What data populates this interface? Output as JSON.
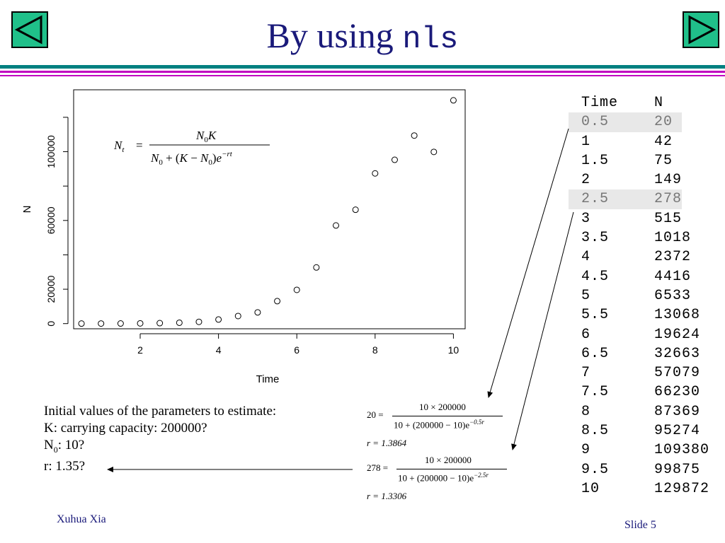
{
  "slide": {
    "title_prefix": "By using",
    "title_code": "nls",
    "author": "Xuhua Xia",
    "slide_number": "Slide 5",
    "colors": {
      "title": "#1a1a7a",
      "nav_fill": "#20c08a",
      "rule_teal": "#008080",
      "rule_magenta": "#c000c0"
    }
  },
  "nav": {
    "prev_icon": "triangle-left-icon",
    "next_icon": "triangle-right-icon"
  },
  "chart_data": {
    "type": "scatter",
    "xlabel": "Time",
    "ylabel": "N",
    "xlim": [
      0.3,
      10.3
    ],
    "ylim": [
      -3000,
      136000
    ],
    "x_ticks": [
      2,
      4,
      6,
      8,
      10
    ],
    "y_ticks": [
      0,
      20000,
      40000,
      60000,
      80000,
      100000,
      120000
    ],
    "y_tick_labels": [
      "0",
      "20000",
      "",
      "60000",
      "",
      "100000",
      ""
    ],
    "marker": "open-circle",
    "x": [
      0.5,
      1,
      1.5,
      2,
      2.5,
      3,
      3.5,
      4,
      4.5,
      5,
      5.5,
      6,
      6.5,
      7,
      7.5,
      8,
      8.5,
      9,
      9.5,
      10
    ],
    "y": [
      20,
      42,
      75,
      149,
      278,
      515,
      1018,
      2372,
      4416,
      6533,
      13068,
      19624,
      32663,
      57079,
      66230,
      87369,
      95274,
      109380,
      99875,
      129872
    ],
    "formula": {
      "lhs": "N",
      "lhs_sub": "t",
      "num_a": "N",
      "num_sub": "0",
      "num_b": "K",
      "den_a": "N",
      "den_sub1": "0",
      "den_mid": " + (",
      "den_k": "K",
      "den_minus": " − ",
      "den_n": "N",
      "den_sub2": "0",
      "den_close": ")",
      "den_e": "e",
      "den_exp": "−rt"
    }
  },
  "table": {
    "header": {
      "time": "Time",
      "n": "N"
    },
    "rows": [
      {
        "time": "0.5",
        "n": "20",
        "highlight": true
      },
      {
        "time": "1",
        "n": "42"
      },
      {
        "time": "1.5",
        "n": "75"
      },
      {
        "time": "2",
        "n": "149"
      },
      {
        "time": "2.5",
        "n": "278",
        "highlight": true
      },
      {
        "time": "3",
        "n": "515"
      },
      {
        "time": "3.5",
        "n": "1018"
      },
      {
        "time": "4",
        "n": "2372"
      },
      {
        "time": "4.5",
        "n": "4416"
      },
      {
        "time": "5",
        "n": "6533"
      },
      {
        "time": "5.5",
        "n": "13068"
      },
      {
        "time": "6",
        "n": "19624"
      },
      {
        "time": "6.5",
        "n": "32663"
      },
      {
        "time": "7",
        "n": "57079"
      },
      {
        "time": "7.5",
        "n": "66230"
      },
      {
        "time": "8",
        "n": "87369"
      },
      {
        "time": "8.5",
        "n": "95274"
      },
      {
        "time": "9",
        "n": "109380"
      },
      {
        "time": "9.5",
        "n": "99875"
      },
      {
        "time": "10",
        "n": "129872"
      }
    ]
  },
  "init_values": {
    "line1": "Initial values of the parameters to estimate:",
    "line2": "K: carrying capacity: 200000?",
    "line3_a": "N",
    "line3_sub": "0",
    "line3_b": ": 10?",
    "line4": "r: 1.35?"
  },
  "equations": [
    {
      "lhs": "20 =",
      "num": "10 × 200000",
      "den": "10 + (200000 − 10)e",
      "exp": "−0.5r",
      "result": "r = 1.3864"
    },
    {
      "lhs": "278 =",
      "num": "10 × 200000",
      "den": "10 + (200000 − 10)e",
      "exp": "−2.5r",
      "result": "r = 1.3306"
    }
  ]
}
